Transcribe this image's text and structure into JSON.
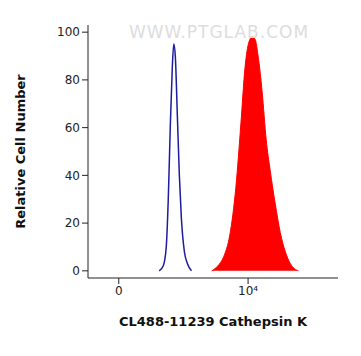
{
  "chart_data": {
    "type": "histogram",
    "x_label": "CL488-11239 Cathepsin K",
    "y_label": "Relative Cell Number",
    "annotations": [
      "WWW.PTGLAB.COM"
    ],
    "xlim": [
      -200,
      250000
    ],
    "xticks": [
      0,
      {
        "value": 10000,
        "label": "10⁴"
      }
    ],
    "ylim": [
      -3,
      103
    ],
    "yticks": [
      0,
      20,
      40,
      60,
      80,
      100
    ],
    "grid": false,
    "series": [
      {
        "color": "#1c1ca0",
        "type": "line",
        "x": [
          323,
          388,
          444,
          485,
          528,
          575,
          613,
          652,
          709,
          769,
          834,
          940,
          1060,
          1240
        ],
        "values": [
          0,
          2,
          10,
          30,
          60,
          85,
          95,
          90,
          65,
          40,
          22,
          8,
          3,
          0
        ]
      },
      {
        "color": "#ff0000",
        "type": "area",
        "x": [
          2650,
          3320,
          4140,
          5160,
          6430,
          7730,
          8940,
          10340,
          11540,
          12870,
          14350,
          16580,
          19170,
          22140,
          26560,
          31800,
          38100,
          45600,
          61000
        ],
        "values": [
          0,
          2,
          6,
          15,
          35,
          62,
          85,
          96,
          98,
          97,
          90,
          75,
          55,
          42,
          28,
          16,
          8,
          3,
          0
        ]
      }
    ]
  }
}
